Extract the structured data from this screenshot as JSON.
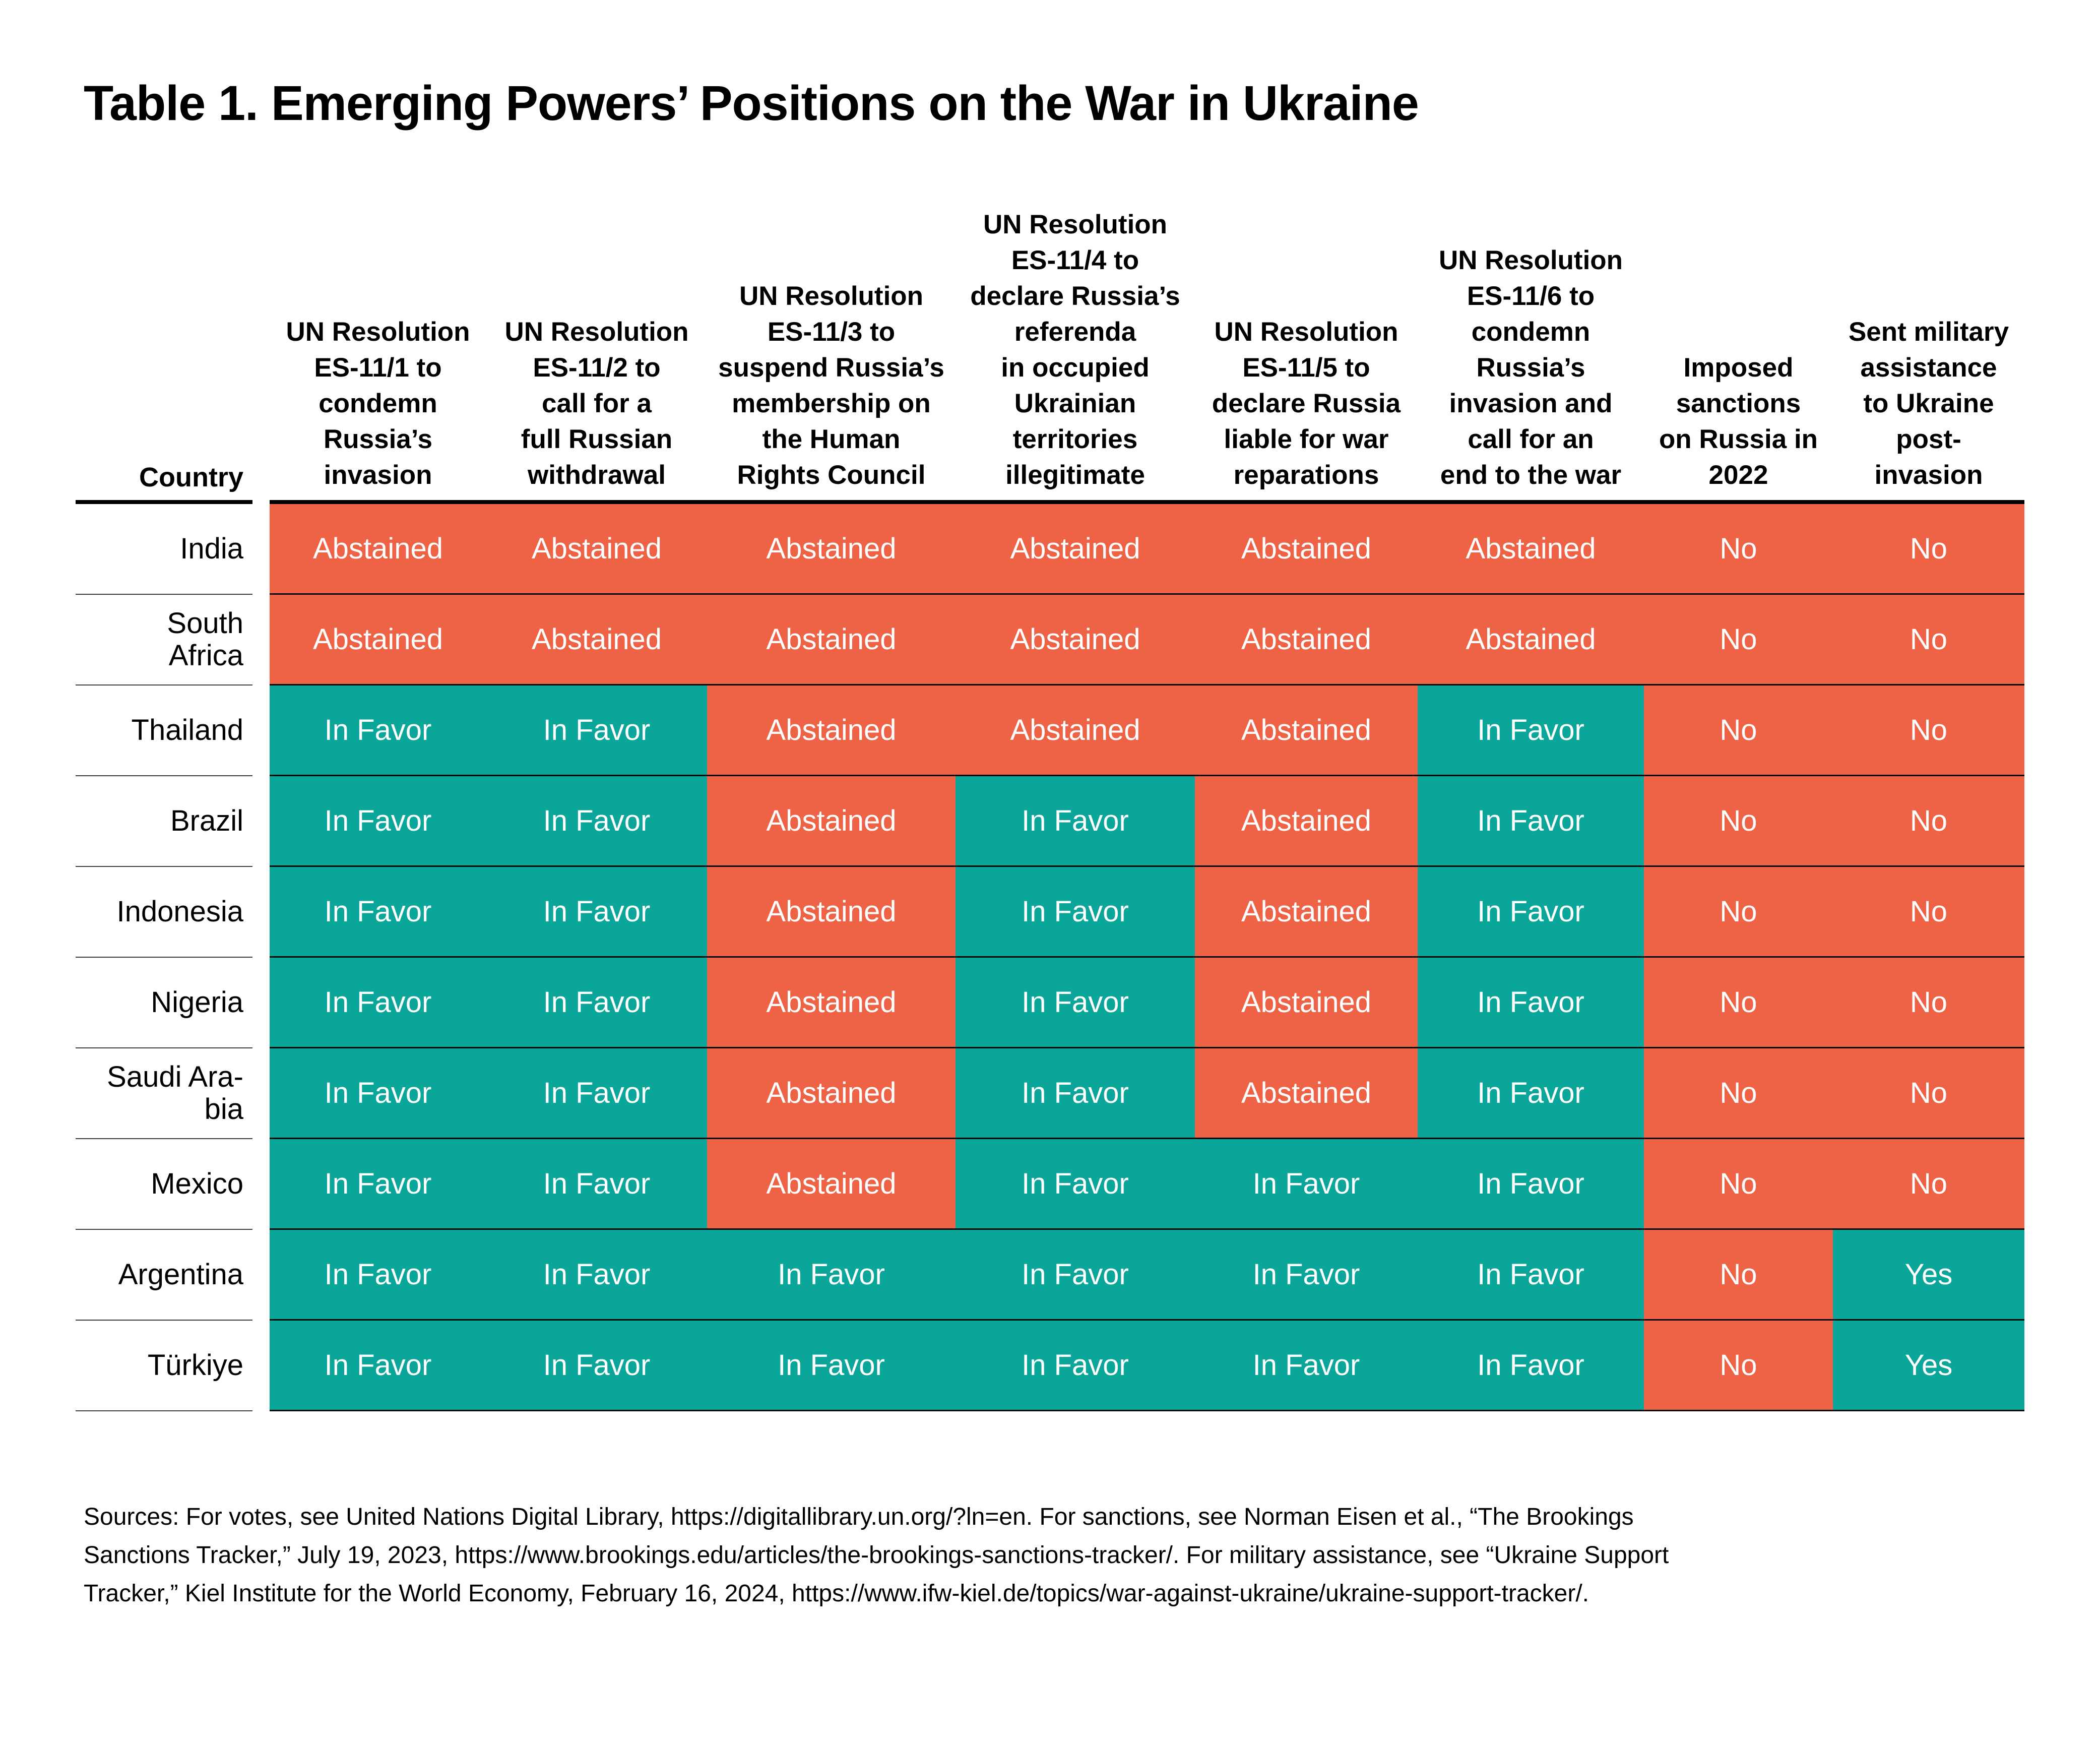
{
  "title": "Table 1. Emerging Powers’ Positions on the War in Ukraine",
  "colors": {
    "in_favor": "#0BA69A",
    "abstained": "#EE6346"
  },
  "positive_values": [
    "In Favor",
    "Yes"
  ],
  "table": {
    "country_header": "Country",
    "columns": [
      {
        "lines": [
          "UN Resolution",
          "ES-11/1 to",
          "condemn",
          "Russia’s",
          "invasion"
        ]
      },
      {
        "lines": [
          "UN Resolution",
          "ES-11/2 to",
          "call for a",
          "full Russian",
          "withdrawal"
        ]
      },
      {
        "lines": [
          "UN Resolution",
          "ES-11/3 to",
          "suspend Russia’s",
          "membership on",
          "the Human",
          "Rights Council"
        ]
      },
      {
        "lines": [
          "UN Resolution",
          "ES-11/4 to",
          "declare Russia’s",
          "referenda",
          "in occupied",
          "Ukrainian",
          "territories",
          "illegitimate"
        ]
      },
      {
        "lines": [
          "UN Resolution",
          "ES-11/5 to",
          "declare Russia",
          "liable for war",
          "reparations"
        ]
      },
      {
        "lines": [
          "UN Resolution",
          "ES-11/6 to",
          "condemn",
          "Russia’s",
          "invasion and",
          "call for an",
          "end to the war"
        ]
      },
      {
        "lines": [
          "Imposed",
          "sanctions",
          "on Russia in",
          "2022"
        ]
      },
      {
        "lines": [
          "Sent military",
          "assistance",
          "to Ukraine",
          "post-",
          "invasion"
        ]
      }
    ],
    "rows": [
      {
        "country": "India",
        "values": [
          "Abstained",
          "Abstained",
          "Abstained",
          "Abstained",
          "Abstained",
          "Abstained",
          "No",
          "No"
        ]
      },
      {
        "country": "South\nAfrica",
        "values": [
          "Abstained",
          "Abstained",
          "Abstained",
          "Abstained",
          "Abstained",
          "Abstained",
          "No",
          "No"
        ]
      },
      {
        "country": "Thailand",
        "values": [
          "In Favor",
          "In Favor",
          "Abstained",
          "Abstained",
          "Abstained",
          "In Favor",
          "No",
          "No"
        ]
      },
      {
        "country": "Brazil",
        "values": [
          "In Favor",
          "In Favor",
          "Abstained",
          "In Favor",
          "Abstained",
          "In Favor",
          "No",
          "No"
        ]
      },
      {
        "country": "Indonesia",
        "values": [
          "In Favor",
          "In Favor",
          "Abstained",
          "In Favor",
          "Abstained",
          "In Favor",
          "No",
          "No"
        ]
      },
      {
        "country": "Nigeria",
        "values": [
          "In Favor",
          "In Favor",
          "Abstained",
          "In Favor",
          "Abstained",
          "In Favor",
          "No",
          "No"
        ]
      },
      {
        "country": "Saudi Ara-\nbia",
        "values": [
          "In Favor",
          "In Favor",
          "Abstained",
          "In Favor",
          "Abstained",
          "In Favor",
          "No",
          "No"
        ]
      },
      {
        "country": "Mexico",
        "values": [
          "In Favor",
          "In Favor",
          "Abstained",
          "In Favor",
          "In Favor",
          "In Favor",
          "No",
          "No"
        ]
      },
      {
        "country": "Argentina",
        "values": [
          "In Favor",
          "In Favor",
          "In Favor",
          "In Favor",
          "In Favor",
          "In Favor",
          "No",
          "Yes"
        ]
      },
      {
        "country": "Türkiye",
        "values": [
          "In Favor",
          "In Favor",
          "In Favor",
          "In Favor",
          "In Favor",
          "In Favor",
          "No",
          "Yes"
        ]
      }
    ]
  },
  "sources_lines": [
    "Sources: For votes, see United Nations Digital Library, https://digitallibrary.un.org/?ln=en. For sanctions, see Norman Eisen et al., “The Brookings",
    "Sanctions Tracker,” July 19, 2023, https://www.brookings.edu/articles/the-brookings-sanctions-tracker/. For military assistance, see “Ukraine Support",
    "Tracker,” Kiel Institute for the World Economy, February 16, 2024, https://www.ifw-kiel.de/topics/war-against-ukraine/ukraine-support-tracker/."
  ],
  "chart_data": {
    "type": "table",
    "title": "Table 1. Emerging Powers’ Positions on the War in Ukraine",
    "columns": [
      "Country",
      "UN Resolution ES-11/1 to condemn Russia’s invasion",
      "UN Resolution ES-11/2 to call for a full Russian withdrawal",
      "UN Resolution ES-11/3 to suspend Russia’s membership on the Human Rights Council",
      "UN Resolution ES-11/4 to declare Russia’s referenda in occupied Ukrainian territories illegitimate",
      "UN Resolution ES-11/5 to declare Russia liable for war reparations",
      "UN Resolution ES-11/6 to condemn Russia’s invasion and call for an end to the war",
      "Imposed sanctions on Russia in 2022",
      "Sent military assistance to Ukraine post-invasion"
    ],
    "rows": [
      [
        "India",
        "Abstained",
        "Abstained",
        "Abstained",
        "Abstained",
        "Abstained",
        "Abstained",
        "No",
        "No"
      ],
      [
        "South Africa",
        "Abstained",
        "Abstained",
        "Abstained",
        "Abstained",
        "Abstained",
        "Abstained",
        "No",
        "No"
      ],
      [
        "Thailand",
        "In Favor",
        "In Favor",
        "Abstained",
        "Abstained",
        "Abstained",
        "In Favor",
        "No",
        "No"
      ],
      [
        "Brazil",
        "In Favor",
        "In Favor",
        "Abstained",
        "In Favor",
        "Abstained",
        "In Favor",
        "No",
        "No"
      ],
      [
        "Indonesia",
        "In Favor",
        "In Favor",
        "Abstained",
        "In Favor",
        "Abstained",
        "In Favor",
        "No",
        "No"
      ],
      [
        "Nigeria",
        "In Favor",
        "In Favor",
        "Abstained",
        "In Favor",
        "Abstained",
        "In Favor",
        "No",
        "No"
      ],
      [
        "Saudi Arabia",
        "In Favor",
        "In Favor",
        "Abstained",
        "In Favor",
        "Abstained",
        "In Favor",
        "No",
        "No"
      ],
      [
        "Mexico",
        "In Favor",
        "In Favor",
        "Abstained",
        "In Favor",
        "In Favor",
        "In Favor",
        "No",
        "No"
      ],
      [
        "Argentina",
        "In Favor",
        "In Favor",
        "In Favor",
        "In Favor",
        "In Favor",
        "In Favor",
        "No",
        "Yes"
      ],
      [
        "Türkiye",
        "In Favor",
        "In Favor",
        "In Favor",
        "In Favor",
        "In Favor",
        "In Favor",
        "No",
        "Yes"
      ]
    ],
    "legend": {
      "In Favor / Yes": "#0BA69A",
      "Abstained / No": "#EE6346"
    },
    "grid": "horizontal rules between rows; cells color-coded"
  }
}
